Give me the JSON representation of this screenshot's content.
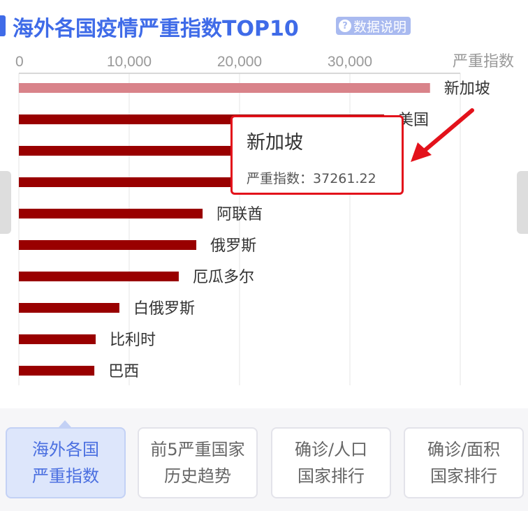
{
  "header": {
    "title": "海外各国疫情严重指数TOP10",
    "info_label": "数据说明",
    "info_icon": "question-circle-icon"
  },
  "chart_data": {
    "type": "bar",
    "orientation": "horizontal",
    "title": "海外各国疫情严重指数TOP10",
    "xlabel": "严重指数",
    "xlim": [
      0,
      40000
    ],
    "xticks": [
      "0",
      "10,000",
      "20,000",
      "30,000"
    ],
    "grid": true,
    "categories": [
      "新加坡",
      "美国",
      "",
      "",
      "阿联酋",
      "俄罗斯",
      "厄瓜多尔",
      "白俄罗斯",
      "比利时",
      "巴西"
    ],
    "values": [
      37261.22,
      33100,
      30000,
      28000,
      16650,
      16080,
      14490,
      9110,
      6960,
      6840
    ],
    "highlight_index": 0,
    "colors": {
      "bar": "#990000",
      "highlight": "#d9838a",
      "grid": "#e6e6e6"
    }
  },
  "tooltip": {
    "name": "新加坡",
    "label": "严重指数：",
    "value": "37261.22"
  },
  "tabs": [
    {
      "line1": "海外各国",
      "line2": "严重指数",
      "active": true
    },
    {
      "line1": "前5严重国家",
      "line2": "历史趋势",
      "active": false
    },
    {
      "line1": "确诊/人口",
      "line2": "国家排行",
      "active": false
    },
    {
      "line1": "确诊/面积",
      "line2": "国家排行",
      "active": false
    }
  ],
  "colors": {
    "accent": "#3f6be8",
    "annotation_arrow": "#e3121b"
  }
}
